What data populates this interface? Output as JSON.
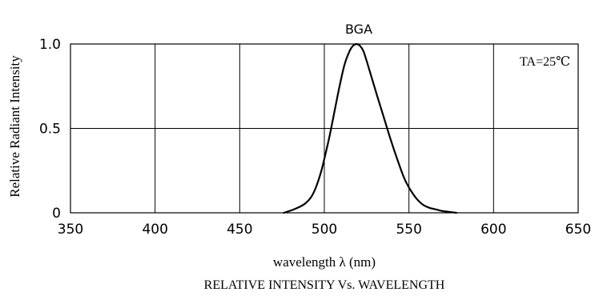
{
  "chart_data": {
    "type": "line",
    "title": "RELATIVE INTENSITY Vs. WAVELENGTH",
    "xlabel": "wavelength λ   (nm)",
    "ylabel": "Relative Radiant Intensity",
    "xlim": [
      350,
      650
    ],
    "ylim": [
      0,
      1.0
    ],
    "x_tick_labels": [
      "350",
      "400",
      "450",
      "500",
      "550",
      "600",
      "650"
    ],
    "y_tick_labels": [
      "0",
      "0.5",
      "1.0"
    ],
    "grid": true,
    "annotations": {
      "peak_label": "BGA",
      "condition": "TA=25℃"
    },
    "series": [
      {
        "name": "BGA",
        "x": [
          476,
          482,
          488,
          492,
          495,
          498,
          500,
          503,
          506,
          509,
          512,
          515,
          517,
          519,
          521,
          523,
          525,
          528,
          531,
          535,
          539,
          543,
          547,
          550,
          554,
          558,
          562,
          566,
          570,
          574,
          578
        ],
        "y": [
          0.0,
          0.02,
          0.05,
          0.09,
          0.15,
          0.24,
          0.32,
          0.45,
          0.6,
          0.75,
          0.88,
          0.96,
          0.99,
          1.0,
          0.99,
          0.96,
          0.9,
          0.8,
          0.7,
          0.57,
          0.44,
          0.32,
          0.21,
          0.15,
          0.09,
          0.05,
          0.03,
          0.02,
          0.01,
          0.005,
          0.0
        ]
      }
    ]
  },
  "colors": {
    "line": "#000000",
    "grid": "#000000",
    "background": "#ffffff"
  }
}
